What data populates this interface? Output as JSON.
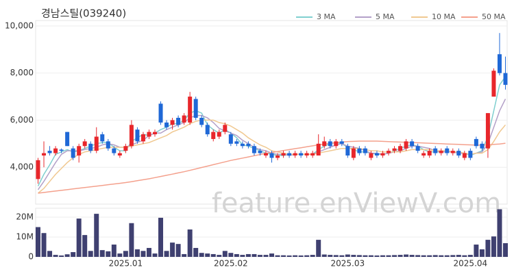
{
  "chart_data": {
    "type": "candlestick",
    "title": "경남스틸(039240)",
    "watermark": "feature.enViewV.com",
    "categories": [
      null,
      null,
      null,
      null,
      null,
      null,
      null,
      null,
      null,
      null,
      null,
      null,
      null,
      null,
      null,
      "2025.01",
      null,
      null,
      null,
      null,
      null,
      null,
      null,
      null,
      null,
      null,
      null,
      null,
      null,
      null,
      null,
      null,
      null,
      "2025.02",
      null,
      null,
      null,
      null,
      null,
      null,
      null,
      null,
      null,
      null,
      null,
      null,
      null,
      null,
      null,
      null,
      null,
      null,
      null,
      "2025.03",
      null,
      null,
      null,
      null,
      null,
      null,
      null,
      null,
      null,
      null,
      null,
      null,
      null,
      null,
      null,
      null,
      null,
      null,
      null,
      null,
      "2025.04",
      null,
      null,
      null,
      null,
      null,
      null
    ],
    "ohlc": {
      "open": [
        3500,
        4500,
        4700,
        4600,
        4750,
        5500,
        4800,
        4500,
        4900,
        5000,
        4700,
        5400,
        5100,
        4800,
        4500,
        4700,
        4900,
        5600,
        5100,
        5300,
        5400,
        6700,
        5900,
        5800,
        6100,
        5900,
        5900,
        6900,
        6100,
        5800,
        5200,
        5300,
        5500,
        5400,
        5100,
        5000,
        5000,
        4900,
        4700,
        4500,
        4600,
        4400,
        4500,
        4600,
        4500,
        4600,
        4500,
        4500,
        4500,
        4900,
        5100,
        4900,
        5100,
        4900,
        4400,
        4800,
        4800,
        4400,
        4600,
        4500,
        4600,
        4700,
        4700,
        4800,
        5100,
        4900,
        4500,
        4500,
        4800,
        4600,
        4800,
        4600,
        4700,
        4400,
        4700,
        5200,
        5000,
        4800,
        7000,
        8800,
        8000
      ],
      "high": [
        4400,
        5100,
        4900,
        4900,
        4800,
        5500,
        4900,
        5000,
        5200,
        5100,
        5700,
        5500,
        5200,
        4900,
        4700,
        5000,
        6000,
        5700,
        5500,
        5600,
        5600,
        6800,
        6000,
        6100,
        6200,
        6300,
        7200,
        7000,
        6200,
        5900,
        5600,
        5600,
        5900,
        5500,
        5200,
        5100,
        5100,
        5000,
        4800,
        4700,
        4700,
        4600,
        4700,
        4700,
        4700,
        4700,
        4700,
        4700,
        5400,
        5300,
        5200,
        5200,
        5200,
        5000,
        4900,
        4900,
        4900,
        4700,
        4700,
        4700,
        4800,
        4900,
        5000,
        5200,
        5200,
        5000,
        4700,
        4800,
        4900,
        4800,
        4900,
        4800,
        4800,
        4700,
        4800,
        5300,
        5100,
        6300,
        8200,
        9700,
        8700
      ],
      "low": [
        3300,
        4000,
        4500,
        4500,
        4600,
        4900,
        4300,
        4200,
        4800,
        4600,
        4600,
        5000,
        4700,
        4500,
        4400,
        4600,
        4800,
        5000,
        5000,
        5200,
        5300,
        5800,
        5600,
        5600,
        5700,
        5800,
        5800,
        6000,
        5700,
        5300,
        5100,
        5200,
        5400,
        4900,
        4900,
        4800,
        4800,
        4500,
        4500,
        4400,
        4200,
        4300,
        4400,
        4400,
        4400,
        4400,
        4400,
        4400,
        4500,
        4800,
        4800,
        4800,
        4900,
        4400,
        4300,
        4500,
        4500,
        4300,
        4400,
        4400,
        4500,
        4600,
        4600,
        4700,
        4800,
        4600,
        4400,
        4400,
        4500,
        4500,
        4500,
        4500,
        4400,
        4300,
        4300,
        4800,
        4700,
        4400,
        7000,
        7900,
        7300
      ],
      "close": [
        4300,
        4600,
        4600,
        4800,
        4700,
        4900,
        4400,
        4900,
        5100,
        4700,
        5300,
        5100,
        4800,
        4600,
        4600,
        4900,
        5800,
        5100,
        5400,
        5500,
        5500,
        5900,
        5700,
        6000,
        5800,
        6200,
        7000,
        6100,
        5800,
        5400,
        5500,
        5500,
        5800,
        5000,
        5000,
        4900,
        4900,
        4600,
        4600,
        4600,
        4400,
        4500,
        4600,
        4500,
        4600,
        4500,
        4600,
        4600,
        5000,
        5100,
        4900,
        5100,
        5000,
        4500,
        4800,
        4600,
        4600,
        4600,
        4500,
        4600,
        4700,
        4800,
        4900,
        5100,
        4900,
        4700,
        4600,
        4700,
        4600,
        4700,
        4600,
        4700,
        4500,
        4600,
        4400,
        4900,
        4800,
        6300,
        8100,
        8000,
        7500
      ]
    },
    "up_color": "#e8262b",
    "down_color": "#1f68d6",
    "ylim": [
      2435,
      10230
    ],
    "yticks": [
      {
        "value": 4000,
        "label": "4,000"
      },
      {
        "value": 6000,
        "label": "6,000"
      },
      {
        "value": 8000,
        "label": "8,000"
      },
      {
        "value": 10000,
        "label": "10,000"
      }
    ],
    "grid": true,
    "series": [
      {
        "name": "3 MA",
        "color": "#7fcfcf",
        "values": [
          3200,
          3700,
          4100,
          4550,
          4650,
          4750,
          4650,
          4700,
          4800,
          4900,
          5000,
          5050,
          5050,
          4850,
          4700,
          4700,
          5100,
          5250,
          5400,
          5350,
          5450,
          5600,
          5700,
          5850,
          5850,
          6000,
          6300,
          6400,
          6300,
          5800,
          5600,
          5450,
          5600,
          5450,
          5250,
          4950,
          4900,
          4800,
          4700,
          4600,
          4550,
          4500,
          4500,
          4550,
          4550,
          4550,
          4550,
          4550,
          4750,
          4900,
          5000,
          5050,
          5000,
          4850,
          4750,
          4650,
          4650,
          4600,
          4550,
          4550,
          4600,
          4700,
          4800,
          4900,
          4950,
          4900,
          4750,
          4650,
          4650,
          4650,
          4650,
          4650,
          4600,
          4600,
          4500,
          4600,
          4700,
          5300,
          6400,
          7500,
          7850
        ]
      },
      {
        "name": "5 MA",
        "color": "#b3a0c8",
        "values": [
          3050,
          3400,
          3800,
          4200,
          4550,
          4700,
          4700,
          4700,
          4750,
          4800,
          4850,
          4950,
          5000,
          4950,
          4850,
          4850,
          4950,
          5050,
          5150,
          5350,
          5450,
          5450,
          5600,
          5700,
          5800,
          5900,
          6100,
          6200,
          6200,
          6100,
          5900,
          5650,
          5550,
          5450,
          5350,
          5150,
          5000,
          4850,
          4750,
          4700,
          4600,
          4550,
          4550,
          4500,
          4550,
          4550,
          4550,
          4550,
          4650,
          4750,
          4850,
          4950,
          5000,
          4900,
          4850,
          4800,
          4700,
          4600,
          4600,
          4550,
          4600,
          4650,
          4700,
          4800,
          4900,
          4900,
          4850,
          4800,
          4700,
          4650,
          4650,
          4650,
          4600,
          4600,
          4550,
          4600,
          4650,
          5000,
          5700,
          6400,
          6900
        ]
      },
      {
        "name": "10 MA",
        "color": "#f0c890",
        "values": [
          2900,
          3100,
          3400,
          3700,
          3950,
          4200,
          4400,
          4550,
          4650,
          4700,
          4750,
          4800,
          4850,
          4850,
          4850,
          4850,
          4900,
          4950,
          5000,
          5050,
          5150,
          5250,
          5350,
          5500,
          5600,
          5700,
          5850,
          5950,
          6000,
          6000,
          6000,
          5900,
          5850,
          5750,
          5600,
          5450,
          5250,
          5100,
          4950,
          4850,
          4700,
          4650,
          4600,
          4550,
          4550,
          4550,
          4550,
          4550,
          4600,
          4650,
          4700,
          4750,
          4800,
          4800,
          4800,
          4800,
          4750,
          4700,
          4700,
          4650,
          4650,
          4650,
          4650,
          4700,
          4750,
          4750,
          4750,
          4750,
          4700,
          4700,
          4700,
          4650,
          4650,
          4600,
          4550,
          4600,
          4600,
          4750,
          5100,
          5500,
          5800
        ]
      },
      {
        "name": "50 MA",
        "color": "#f4a08c",
        "values": [
          2900,
          2930,
          2960,
          2990,
          3020,
          3050,
          3080,
          3110,
          3140,
          3170,
          3200,
          3230,
          3260,
          3290,
          3320,
          3350,
          3390,
          3430,
          3470,
          3510,
          3560,
          3610,
          3660,
          3710,
          3760,
          3810,
          3870,
          3930,
          3990,
          4050,
          4110,
          4170,
          4230,
          4290,
          4340,
          4390,
          4440,
          4490,
          4540,
          4590,
          4630,
          4670,
          4710,
          4750,
          4790,
          4830,
          4870,
          4910,
          4950,
          4990,
          5020,
          5050,
          5070,
          5090,
          5100,
          5110,
          5110,
          5110,
          5110,
          5100,
          5090,
          5080,
          5070,
          5060,
          5050,
          5040,
          5030,
          5020,
          5010,
          5000,
          4990,
          4980,
          4970,
          4960,
          4950,
          4940,
          4940,
          4950,
          4970,
          4990,
          5020
        ]
      }
    ],
    "volume": {
      "color": "#3f4070",
      "values": [
        15000000,
        12000000,
        3000000,
        1000000,
        700000,
        1300000,
        2400000,
        19300000,
        11000000,
        3000000,
        21700000,
        3400000,
        2800000,
        6200000,
        1700000,
        3000000,
        17000000,
        3800000,
        3000000,
        4500000,
        1700000,
        19700000,
        3000000,
        7200000,
        6500000,
        1400000,
        13800000,
        4500000,
        2000000,
        1700000,
        1400000,
        1000000,
        3000000,
        2000000,
        1400000,
        1000000,
        1400000,
        1400000,
        1000000,
        1000000,
        1700000,
        800000,
        800000,
        700000,
        800000,
        700000,
        800000,
        1000000,
        8600000,
        1200000,
        1000000,
        900000,
        800000,
        1200000,
        1000000,
        900000,
        800000,
        800000,
        700000,
        800000,
        800000,
        900000,
        1000000,
        1200000,
        1000000,
        900000,
        800000,
        800000,
        900000,
        800000,
        800000,
        900000,
        1000000,
        800000,
        1000000,
        6200000,
        3800000,
        8600000,
        10300000,
        24000000,
        6900000
      ],
      "ylim": [
        0,
        24500000
      ],
      "yticks": [
        0,
        {
          "value": 10000000,
          "label": "10M"
        },
        {
          "value": 20000000,
          "label": "20M"
        }
      ]
    }
  }
}
